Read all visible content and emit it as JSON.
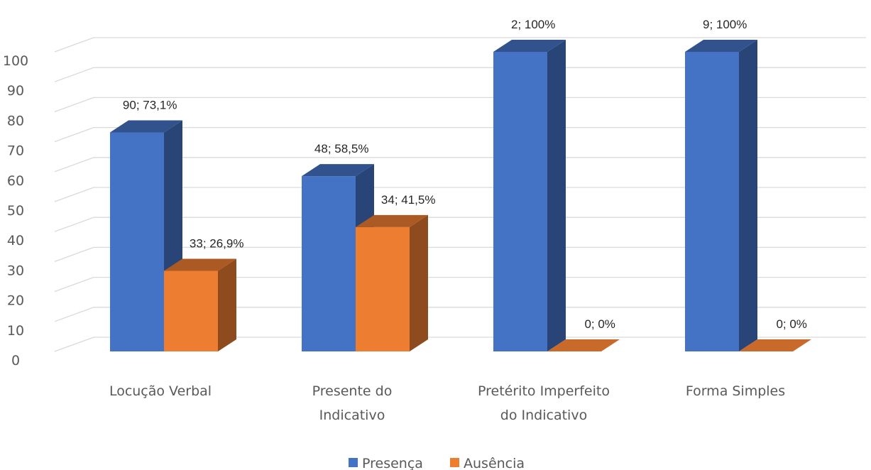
{
  "chart_data": {
    "type": "bar",
    "categories": [
      [
        "Locução Verbal"
      ],
      [
        "Presente do",
        "Indicativo"
      ],
      [
        "Pretérito Imperfeito",
        "do Indicativo"
      ],
      [
        "Forma Simples"
      ]
    ],
    "series": [
      {
        "name": "Presença",
        "color": "#4472C4",
        "values": [
          73.1,
          58.5,
          100,
          100
        ],
        "labels": [
          "90; 73,1%",
          "48; 58,5%",
          "2; 100%",
          "9; 100%"
        ]
      },
      {
        "name": "Ausência",
        "color": "#ED7D31",
        "values": [
          26.9,
          41.5,
          0,
          0
        ],
        "labels": [
          "33; 26,9%",
          "34; 41,5%",
          "0; 0%",
          "0; 0%"
        ]
      }
    ],
    "yticks": [
      "0",
      "10",
      "20",
      "30",
      "40",
      "50",
      "60",
      "70",
      "80",
      "90",
      "100"
    ],
    "ylim": [
      0,
      100
    ],
    "grid": true,
    "legend": "bottom-center",
    "style": "3d-clustered-column"
  }
}
